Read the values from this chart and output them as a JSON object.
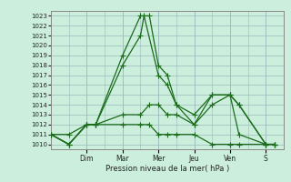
{
  "xlabel": "Pression niveau de la mer( hPa )",
  "bg_color": "#cceedd",
  "grid_color": "#99bbbb",
  "line_color": "#1a6b1a",
  "ylim": [
    1009.5,
    1023.5
  ],
  "yticks": [
    1010,
    1011,
    1012,
    1013,
    1014,
    1015,
    1016,
    1017,
    1018,
    1019,
    1020,
    1021,
    1022,
    1023
  ],
  "day_labels": [
    "Dim",
    "Mar",
    "Mer",
    "Jeu",
    "Ven",
    "S"
  ],
  "day_positions": [
    2,
    4,
    6,
    8,
    10,
    12
  ],
  "xlim": [
    0,
    13
  ],
  "series": {
    "line1": {
      "x": [
        0,
        1,
        2,
        2.5,
        4,
        5,
        5.5,
        6,
        6.5,
        7,
        8,
        9,
        10,
        10.5,
        12,
        12.5
      ],
      "y": [
        1011,
        1010,
        1012,
        1012,
        1019,
        1023,
        1023,
        1018,
        1017,
        1014,
        1012,
        1015,
        1015,
        1014,
        1010,
        1010
      ]
    },
    "line2": {
      "x": [
        0,
        1,
        2,
        2.5,
        4,
        5,
        5.2,
        6,
        6.5,
        7,
        8,
        9,
        10,
        10.5,
        12,
        12.5
      ],
      "y": [
        1011,
        1011,
        1012,
        1012,
        1018,
        1021,
        1023,
        1017,
        1016,
        1014,
        1013,
        1015,
        1015,
        1014,
        1010,
        1010
      ]
    },
    "line3": {
      "x": [
        0,
        1,
        2,
        2.5,
        4,
        5,
        5.5,
        6,
        6.5,
        7,
        8,
        9,
        10,
        10.5,
        12,
        12.5
      ],
      "y": [
        1011,
        1010,
        1012,
        1012,
        1013,
        1013,
        1014,
        1014,
        1013,
        1013,
        1012,
        1014,
        1015,
        1011,
        1010,
        1010
      ]
    },
    "line4": {
      "x": [
        0,
        1,
        2,
        2.5,
        4,
        5,
        5.5,
        6,
        6.5,
        7,
        8,
        9,
        10,
        10.5,
        12,
        12.5
      ],
      "y": [
        1011,
        1010,
        1012,
        1012,
        1012,
        1012,
        1012,
        1011,
        1011,
        1011,
        1011,
        1010,
        1010,
        1010,
        1010,
        1010
      ]
    }
  }
}
